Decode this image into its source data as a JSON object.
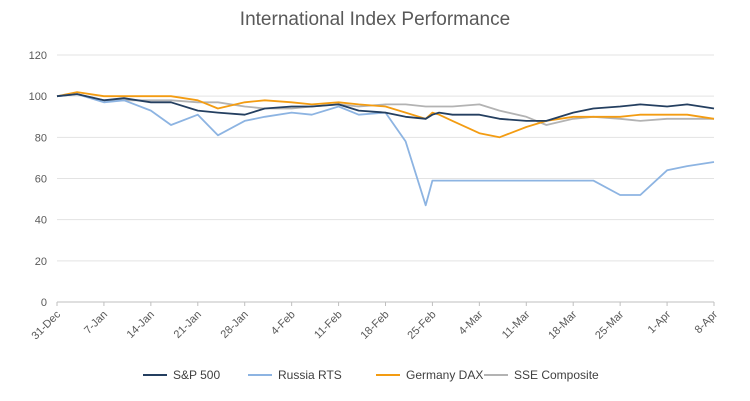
{
  "chart_data": {
    "type": "line",
    "title": "International Index Performance",
    "xlabel": "",
    "ylabel": "",
    "ylim": [
      0,
      120
    ],
    "yticks": [
      0,
      20,
      40,
      60,
      80,
      100,
      120
    ],
    "xticks": [
      "31-Dec",
      "7-Jan",
      "14-Jan",
      "21-Jan",
      "28-Jan",
      "4-Feb",
      "11-Feb",
      "18-Feb",
      "25-Feb",
      "4-Mar",
      "11-Mar",
      "18-Mar",
      "25-Mar",
      "1-Apr",
      "8-Apr"
    ],
    "grid": true,
    "legend_position": "bottom",
    "x": [
      "31-Dec",
      "3-Jan",
      "7-Jan",
      "10-Jan",
      "14-Jan",
      "17-Jan",
      "21-Jan",
      "24-Jan",
      "28-Jan",
      "31-Jan",
      "4-Feb",
      "7-Feb",
      "11-Feb",
      "14-Feb",
      "18-Feb",
      "21-Feb",
      "24-Feb",
      "25-Feb",
      "26-Feb",
      "28-Feb",
      "4-Mar",
      "7-Mar",
      "11-Mar",
      "14-Mar",
      "18-Mar",
      "21-Mar",
      "25-Mar",
      "28-Mar",
      "1-Apr",
      "4-Apr",
      "8-Apr"
    ],
    "series": [
      {
        "name": "S&P 500",
        "color": "#243f60",
        "values": [
          100,
          101,
          98,
          99,
          97,
          97,
          93,
          92,
          91,
          94,
          95,
          95,
          96,
          93,
          92,
          90,
          89,
          91,
          92,
          91,
          91,
          89,
          88,
          88,
          92,
          94,
          95,
          96,
          95,
          96,
          94
        ]
      },
      {
        "name": "Russia RTS",
        "color": "#8db4e2",
        "values": [
          100,
          101,
          97,
          98,
          93,
          86,
          91,
          81,
          88,
          90,
          92,
          91,
          95,
          91,
          92,
          78,
          47,
          59,
          59,
          59,
          59,
          59,
          59,
          59,
          59,
          59,
          52,
          52,
          64,
          66,
          68
        ]
      },
      {
        "name": "Germany DAX",
        "color": "#f39c12",
        "values": [
          100,
          102,
          100,
          100,
          100,
          100,
          98,
          94,
          97,
          98,
          97,
          96,
          97,
          96,
          95,
          92,
          89,
          92,
          91,
          88,
          82,
          80,
          85,
          88,
          90,
          90,
          90,
          91,
          91,
          91,
          89
        ]
      },
      {
        "name": "SSE Composite",
        "color": "#b3b3b3",
        "values": [
          100,
          101,
          98,
          98,
          98,
          98,
          97,
          97,
          95,
          94,
          94,
          95,
          96,
          95,
          96,
          96,
          95,
          95,
          95,
          95,
          96,
          93,
          90,
          86,
          89,
          90,
          89,
          88,
          89,
          89,
          89
        ]
      }
    ]
  }
}
